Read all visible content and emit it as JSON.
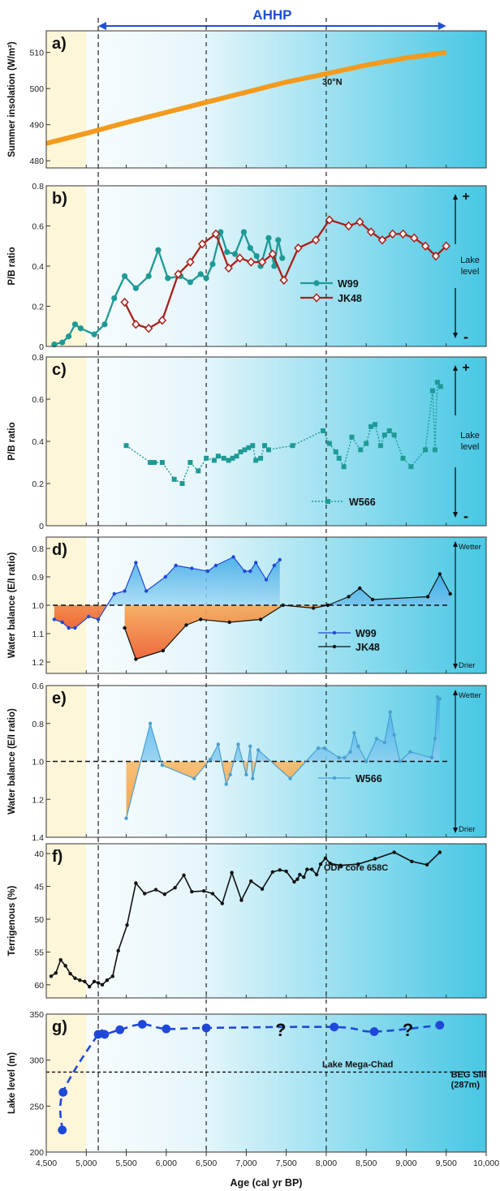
{
  "chart_data": {
    "type": "line",
    "x_range": [
      4500,
      10000
    ],
    "xlabel": "Age (cal yr BP)",
    "x_ticks": [
      4500,
      5000,
      5500,
      6000,
      6500,
      7000,
      7500,
      8000,
      8500,
      9000,
      9500,
      10000
    ],
    "x_tick_labels": [
      "4,500",
      "5,000",
      "5,500",
      "6,000",
      "6,500",
      "7,000",
      "7,500",
      "8,000",
      "8,500",
      "9,000",
      "9,500",
      "10,000"
    ],
    "header": {
      "label": "AHHP",
      "from": 5150,
      "to": 9500,
      "color": "#1f4fd6"
    },
    "vertical_lines": [
      5150,
      6500,
      8000
    ],
    "shading": {
      "arid_until": 5000,
      "arid_color": "#fdf6d9",
      "humid_color": "#47c7e4"
    },
    "panels": [
      {
        "id": "a",
        "letter": "a)",
        "ylabel": "Summer insolation (W/m²)",
        "ylim": [
          478,
          516
        ],
        "inverted": false,
        "ticks": [
          480,
          490,
          500,
          510
        ],
        "tick_labels": [
          "480",
          "490",
          "500",
          "510"
        ],
        "annotations": [
          {
            "text": "30°N",
            "x": 7950,
            "y": 501
          }
        ],
        "series": [
          {
            "values_x": [
              4500,
              5000,
              5500,
              6000,
              6500,
              7000,
              7500,
              8000,
              8500,
              9000,
              9500
            ],
            "values_y": [
              484.8,
              487.6,
              490.6,
              493.4,
              496.2,
              499.0,
              501.8,
              504.1,
              506.5,
              508.5,
              510.0
            ],
            "color": "#f49a1c",
            "marker": "none",
            "width": 6
          }
        ]
      },
      {
        "id": "b",
        "letter": "b)",
        "ylabel": "P/B ratio",
        "ylim": [
          0,
          0.8
        ],
        "inverted": false,
        "ticks": [
          0,
          0.2,
          0.4,
          0.6,
          0.8
        ],
        "tick_labels": [
          "0",
          "0.2",
          "0.4",
          "0.6",
          "0.8"
        ],
        "side_arrow": {
          "top": "+",
          "bottom": "-",
          "label_1": "Lake",
          "label_2": "level"
        },
        "legend": [
          {
            "name": "W99",
            "series": 0
          },
          {
            "name": "JK48",
            "series": 1
          }
        ],
        "series": [
          {
            "name": "W99",
            "color": "#1e9a96",
            "marker": "circle",
            "width": 2.3,
            "values_x": [
              4600,
              4700,
              4780,
              4860,
              4930,
              5100,
              5230,
              5350,
              5480,
              5620,
              5780,
              5900,
              6020,
              6180,
              6300,
              6430,
              6500,
              6580,
              6680,
              6760,
              6860,
              6970,
              7050,
              7130,
              7180,
              7280,
              7350,
              7400,
              7450
            ],
            "values_y": [
              0.01,
              0.02,
              0.05,
              0.11,
              0.09,
              0.06,
              0.11,
              0.24,
              0.35,
              0.29,
              0.35,
              0.48,
              0.34,
              0.35,
              0.32,
              0.36,
              0.34,
              0.41,
              0.57,
              0.47,
              0.46,
              0.57,
              0.49,
              0.45,
              0.4,
              0.54,
              0.4,
              0.53,
              0.44
            ]
          },
          {
            "name": "JK48",
            "color": "#a8201a",
            "marker": "diamond",
            "width": 2.3,
            "values_x": [
              5480,
              5620,
              5780,
              5950,
              6150,
              6300,
              6450,
              6620,
              6780,
              6920,
              7060,
              7200,
              7330,
              7470,
              7650,
              7870,
              8040,
              8280,
              8420,
              8560,
              8700,
              8830,
              8960,
              9100,
              9240,
              9370,
              9500
            ],
            "values_y": [
              0.22,
              0.11,
              0.09,
              0.13,
              0.36,
              0.42,
              0.51,
              0.56,
              0.39,
              0.44,
              0.42,
              0.42,
              0.46,
              0.33,
              0.49,
              0.53,
              0.63,
              0.6,
              0.62,
              0.57,
              0.53,
              0.56,
              0.56,
              0.54,
              0.5,
              0.45,
              0.5
            ]
          }
        ]
      },
      {
        "id": "c",
        "letter": "c)",
        "ylabel": "P/B ratio",
        "ylim": [
          0,
          0.8
        ],
        "inverted": false,
        "ticks": [
          0,
          0.2,
          0.4,
          0.6,
          0.8
        ],
        "tick_labels": [
          "0",
          "0.2",
          "0.4",
          "0.6",
          "0.8"
        ],
        "side_arrow": {
          "top": "+",
          "bottom": "-",
          "label_1": "Lake",
          "label_2": "level"
        },
        "legend": [
          {
            "name": "W566",
            "series": 0
          }
        ],
        "series": [
          {
            "name": "W566",
            "color": "#1e9a96",
            "marker": "square",
            "width": 1.4,
            "dash": "2,2",
            "values_x": [
              5500,
              5800,
              5850,
              5950,
              6100,
              6200,
              6300,
              6400,
              6500,
              6600,
              6650,
              6720,
              6780,
              6830,
              6880,
              6930,
              6980,
              7030,
              7080,
              7120,
              7180,
              7230,
              7280,
              7580,
              7960,
              8040,
              8120,
              8160,
              8220,
              8320,
              8430,
              8500,
              8560,
              8610,
              8680,
              8730,
              8790,
              8850,
              8960,
              9060,
              9240,
              9330,
              9360,
              9390,
              9430
            ],
            "values_y": [
              0.38,
              0.3,
              0.3,
              0.3,
              0.22,
              0.2,
              0.3,
              0.26,
              0.32,
              0.31,
              0.33,
              0.32,
              0.31,
              0.32,
              0.33,
              0.35,
              0.36,
              0.37,
              0.38,
              0.31,
              0.32,
              0.38,
              0.36,
              0.38,
              0.45,
              0.39,
              0.35,
              0.32,
              0.28,
              0.42,
              0.36,
              0.39,
              0.47,
              0.48,
              0.38,
              0.43,
              0.45,
              0.43,
              0.32,
              0.28,
              0.36,
              0.64,
              0.36,
              0.68,
              0.66
            ]
          }
        ]
      },
      {
        "id": "d",
        "letter": "d)",
        "ylabel": "Water balance (E/I ratio)",
        "ylim": [
          0.76,
          1.24
        ],
        "inverted": true,
        "ticks": [
          0.8,
          0.9,
          1.0,
          1.1,
          1.2
        ],
        "tick_labels": [
          "0.8",
          "0.9",
          "1.0",
          "1.1",
          "1.2"
        ],
        "baseline": 1.0,
        "side_arrow": {
          "top": "Wetter",
          "bottom": "Drier"
        },
        "legend": [
          {
            "name": "W99",
            "series": 0
          },
          {
            "name": "JK48",
            "series": 1
          }
        ],
        "series": [
          {
            "name": "W99",
            "color": "#2048d8",
            "marker": "dot",
            "width": 1.2,
            "fill": true,
            "values_x": [
              4600,
              4700,
              4780,
              4860,
              5030,
              5150,
              5350,
              5480,
              5620,
              5750,
              5990,
              6120,
              6320,
              6520,
              6620,
              6840,
              6980,
              7050,
              7120,
              7250,
              7350,
              7420
            ],
            "values_y": [
              1.05,
              1.06,
              1.08,
              1.08,
              1.04,
              1.05,
              0.96,
              0.95,
              0.85,
              0.95,
              0.9,
              0.86,
              0.87,
              0.88,
              0.86,
              0.83,
              0.88,
              0.88,
              0.85,
              0.91,
              0.86,
              0.84
            ]
          },
          {
            "name": "JK48",
            "color": "#111111",
            "marker": "dot",
            "width": 1.2,
            "fill": true,
            "values_x": [
              5480,
              5620,
              5960,
              6250,
              6430,
              6790,
              7180,
              7460,
              7840,
              8020,
              8280,
              8420,
              8580,
              9270,
              9420,
              9550
            ],
            "values_y": [
              1.08,
              1.19,
              1.16,
              1.07,
              1.05,
              1.06,
              1.05,
              1.0,
              1.01,
              1.0,
              0.97,
              0.94,
              0.98,
              0.97,
              0.89,
              0.96
            ]
          }
        ]
      },
      {
        "id": "e",
        "letter": "e)",
        "ylabel": "Water balance (E/I ratio)",
        "ylim": [
          0.6,
          1.4
        ],
        "inverted": true,
        "ticks": [
          0.6,
          0.8,
          1.0,
          1.2,
          1.4
        ],
        "tick_labels": [
          "0.6",
          "0.8",
          "1.0",
          "1.2",
          "1.4"
        ],
        "baseline": 1.0,
        "side_arrow": {
          "top": "Wetter",
          "bottom": "Drier"
        },
        "legend": [
          {
            "name": "W566",
            "series": 0
          }
        ],
        "series": [
          {
            "name": "W566",
            "color": "#4a9fd0",
            "marker": "dot",
            "width": 1.2,
            "fill": true,
            "values_x": [
              5500,
              5800,
              5950,
              6350,
              6550,
              6650,
              6750,
              6800,
              6900,
              7000,
              7050,
              7080,
              7150,
              7550,
              7900,
              7980,
              8160,
              8230,
              8300,
              8350,
              8400,
              8500,
              8630,
              8730,
              8800,
              8850,
              8920,
              9050,
              9320,
              9360,
              9390,
              9420
            ],
            "values_y": [
              1.3,
              0.8,
              1.02,
              1.09,
              0.99,
              0.91,
              1.12,
              1.07,
              0.91,
              1.07,
              0.92,
              1.09,
              0.94,
              1.09,
              0.93,
              0.93,
              0.98,
              0.98,
              0.95,
              0.85,
              0.92,
              1.0,
              0.88,
              0.9,
              0.74,
              0.86,
              1.0,
              0.95,
              0.98,
              0.88,
              0.66,
              0.67
            ]
          }
        ]
      },
      {
        "id": "f",
        "letter": "f)",
        "ylabel": "Terrigenous (%)",
        "ylim": [
          38.5,
          62
        ],
        "inverted": true,
        "ticks": [
          40,
          45,
          50,
          55,
          60
        ],
        "tick_labels": [
          "40",
          "45",
          "50",
          "55",
          "60"
        ],
        "annotations": [
          {
            "text": "ODP core 658C",
            "x": 7970,
            "y": 42.6
          }
        ],
        "series": [
          {
            "name": "ODP core 658C",
            "color": "#111111",
            "marker": "dot",
            "width": 1.6,
            "values_x": [
              4560,
              4620,
              4680,
              4740,
              4800,
              4860,
              4920,
              4980,
              5040,
              5100,
              5150,
              5200,
              5260,
              5330,
              5400,
              5510,
              5620,
              5730,
              5870,
              5980,
              6110,
              6220,
              6320,
              6470,
              6580,
              6700,
              6820,
              6940,
              7060,
              7200,
              7330,
              7420,
              7500,
              7600,
              7640,
              7670,
              7720,
              7760,
              7820,
              7880,
              7930,
              7990,
              8050,
              8180,
              8400,
              8610,
              8850,
              9070,
              9260,
              9420
            ],
            "values_y": [
              58.7,
              58.2,
              56.2,
              57.1,
              58.3,
              59.0,
              59.3,
              59.5,
              60.3,
              59.5,
              59.7,
              60.0,
              59.3,
              58.7,
              54.8,
              50.9,
              44.5,
              46.1,
              45.5,
              46.2,
              45.2,
              43.3,
              45.8,
              45.7,
              46.1,
              47.6,
              42.9,
              47.1,
              44.2,
              45.4,
              42.8,
              42.5,
              42.7,
              44.3,
              43.9,
              43.2,
              43.6,
              42.4,
              42.4,
              43.2,
              41.6,
              40.7,
              41.5,
              41.8,
              41.6,
              40.8,
              39.8,
              41.2,
              41.7,
              39.8
            ]
          }
        ]
      },
      {
        "id": "g",
        "letter": "g)",
        "ylabel": "Lake level (m)",
        "ylim": [
          200,
          350
        ],
        "inverted": false,
        "ticks": [
          200,
          250,
          300,
          350
        ],
        "tick_labels": [
          "200",
          "250",
          "300",
          "350"
        ],
        "threshold": 287,
        "annotations": [
          {
            "text": "Lake Mega-Chad",
            "x": 7950,
            "y": 292
          },
          {
            "text": "BEG Sill",
            "x": 9560,
            "y": 281
          },
          {
            "text": "(287m)",
            "x": 9560,
            "y": 270
          }
        ],
        "question_marks": [
          {
            "text": "?",
            "x": 7430,
            "y": 326
          },
          {
            "text": "?",
            "x": 9020,
            "y": 326
          }
        ],
        "series": [
          {
            "name": "Lake level",
            "color": "#2048d8",
            "marker": "bigdot",
            "width": 2.6,
            "dash": "9,6",
            "values_x": [
              4700,
              4710,
              5150,
              5230,
              5420,
              5700,
              6000,
              6500,
              8100,
              8600,
              9420
            ],
            "values_y": [
              224,
              265,
              328,
              328,
              333,
              339,
              334,
              335,
              336,
              331,
              338
            ]
          }
        ]
      }
    ]
  }
}
